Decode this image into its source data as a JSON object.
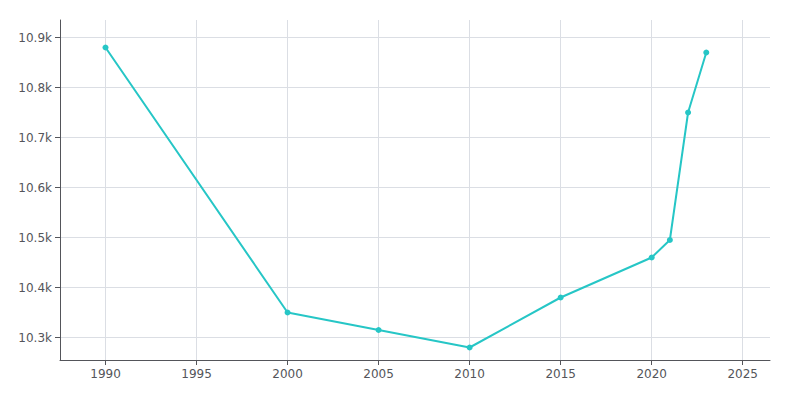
{
  "chart_data": {
    "type": "line",
    "x": [
      1990,
      2000,
      2005,
      2010,
      2015,
      2020,
      2021,
      2022,
      2023
    ],
    "values": [
      10880,
      10350,
      10315,
      10280,
      10380,
      10460,
      10495,
      10750,
      10870
    ],
    "color": "#26c6c6",
    "marker": "circle",
    "xlim": [
      1987.5,
      2026.5
    ],
    "xticks": [
      1990,
      1995,
      2000,
      2005,
      2010,
      2015,
      2020,
      2025
    ],
    "ylim": [
      10255,
      10935
    ],
    "yticks": [
      {
        "value": 10300,
        "label": "10.3k"
      },
      {
        "value": 10400,
        "label": "10.4k"
      },
      {
        "value": 10500,
        "label": "10.5k"
      },
      {
        "value": 10600,
        "label": "10.6k"
      },
      {
        "value": 10700,
        "label": "10.7k"
      },
      {
        "value": 10800,
        "label": "10.8k"
      },
      {
        "value": 10900,
        "label": "10.9k"
      }
    ],
    "grid": true
  }
}
